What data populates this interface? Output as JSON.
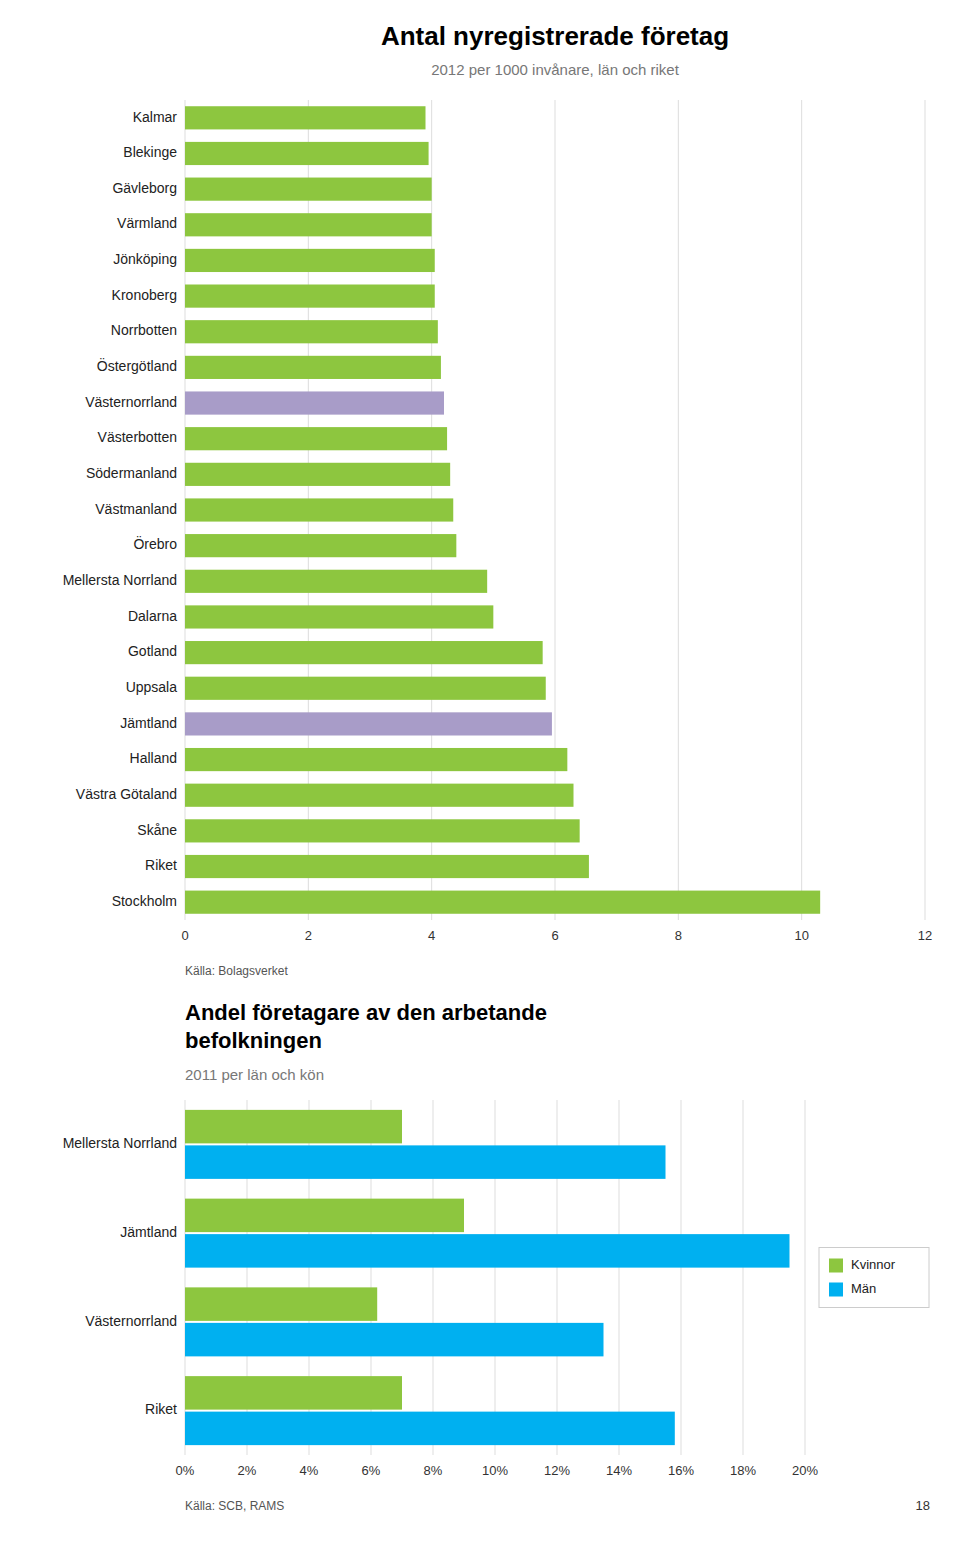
{
  "chart_data": [
    {
      "type": "bar",
      "orientation": "horizontal",
      "title": "Antal nyregistrerade företag",
      "subtitle": "2012 per 1000 invånare, län och riket",
      "categories": [
        "Kalmar",
        "Blekinge",
        "Gävleborg",
        "Värmland",
        "Jönköping",
        "Kronoberg",
        "Norrbotten",
        "Östergötland",
        "Västernorrland",
        "Västerbotten",
        "Södermanland",
        "Västmanland",
        "Örebro",
        "Mellersta Norrland",
        "Dalarna",
        "Gotland",
        "Uppsala",
        "Jämtland",
        "Halland",
        "Västra Götaland",
        "Skåne",
        "Riket",
        "Stockholm"
      ],
      "values": [
        3.9,
        3.95,
        4.0,
        4.0,
        4.05,
        4.05,
        4.1,
        4.15,
        4.2,
        4.25,
        4.3,
        4.35,
        4.4,
        4.9,
        5.0,
        5.8,
        5.85,
        5.95,
        6.2,
        6.3,
        6.4,
        6.55,
        10.3
      ],
      "colors": [
        "#8dc63f",
        "#8dc63f",
        "#8dc63f",
        "#8dc63f",
        "#8dc63f",
        "#8dc63f",
        "#8dc63f",
        "#8dc63f",
        "#a89cc8",
        "#8dc63f",
        "#8dc63f",
        "#8dc63f",
        "#8dc63f",
        "#8dc63f",
        "#8dc63f",
        "#8dc63f",
        "#8dc63f",
        "#a89cc8",
        "#8dc63f",
        "#8dc63f",
        "#8dc63f",
        "#8dc63f",
        "#8dc63f"
      ],
      "xlim": [
        0,
        12
      ],
      "xticks": [
        0,
        2,
        4,
        6,
        8,
        10,
        12
      ],
      "grid": true,
      "annotations": [
        "Källa: Bolagsverket"
      ]
    },
    {
      "type": "bar",
      "orientation": "horizontal",
      "title": "Andel företagare av den arbetande\nbefolkningen",
      "subtitle": "2011 per län och kön",
      "categories": [
        "Mellersta Norrland",
        "Jämtland",
        "Västernorrland",
        "Riket"
      ],
      "series": [
        {
          "name": "Kvinnor",
          "color": "#8dc63f",
          "values": [
            0.07,
            0.09,
            0.062,
            0.07
          ]
        },
        {
          "name": "Män",
          "color": "#00b0f0",
          "values": [
            0.155,
            0.195,
            0.135,
            0.158
          ]
        }
      ],
      "xlim": [
        0,
        0.2
      ],
      "xticks": [
        {
          "value": 0,
          "label": "0%"
        },
        {
          "value": 0.02,
          "label": "2%"
        },
        {
          "value": 0.04,
          "label": "4%"
        },
        {
          "value": 0.06,
          "label": "6%"
        },
        {
          "value": 0.08,
          "label": "8%"
        },
        {
          "value": 0.1,
          "label": "10%"
        },
        {
          "value": 0.12,
          "label": "12%"
        },
        {
          "value": 0.14,
          "label": "14%"
        },
        {
          "value": 0.16,
          "label": "16%"
        },
        {
          "value": 0.18,
          "label": "18%"
        },
        {
          "value": 0.2,
          "label": "20%"
        }
      ],
      "grid": true,
      "legend": "right",
      "annotations": [
        "Källa: SCB, RAMS",
        "18"
      ]
    }
  ]
}
